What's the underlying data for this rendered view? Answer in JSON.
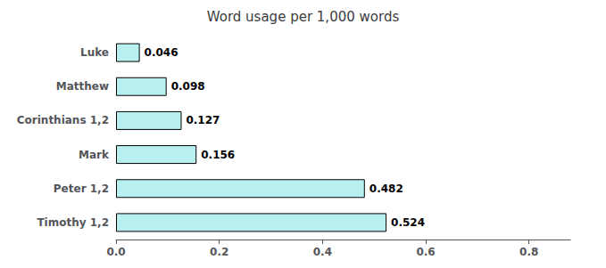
{
  "chart_data": {
    "type": "bar",
    "orientation": "horizontal",
    "title": "Word usage per 1,000 words",
    "categories": [
      "Timothy 1,2",
      "Peter 1,2",
      "Mark",
      "Corinthians 1,2",
      "Matthew",
      "Luke"
    ],
    "values": [
      0.524,
      0.482,
      0.156,
      0.127,
      0.098,
      0.046
    ],
    "color": "#b8f0f0",
    "xlim": [
      0.0,
      0.88
    ],
    "xticks": [
      {
        "value": 0.0,
        "label": "0.0"
      },
      0.2,
      0.4,
      0.6,
      0.8
    ],
    "data_labels": true,
    "grid": false
  }
}
